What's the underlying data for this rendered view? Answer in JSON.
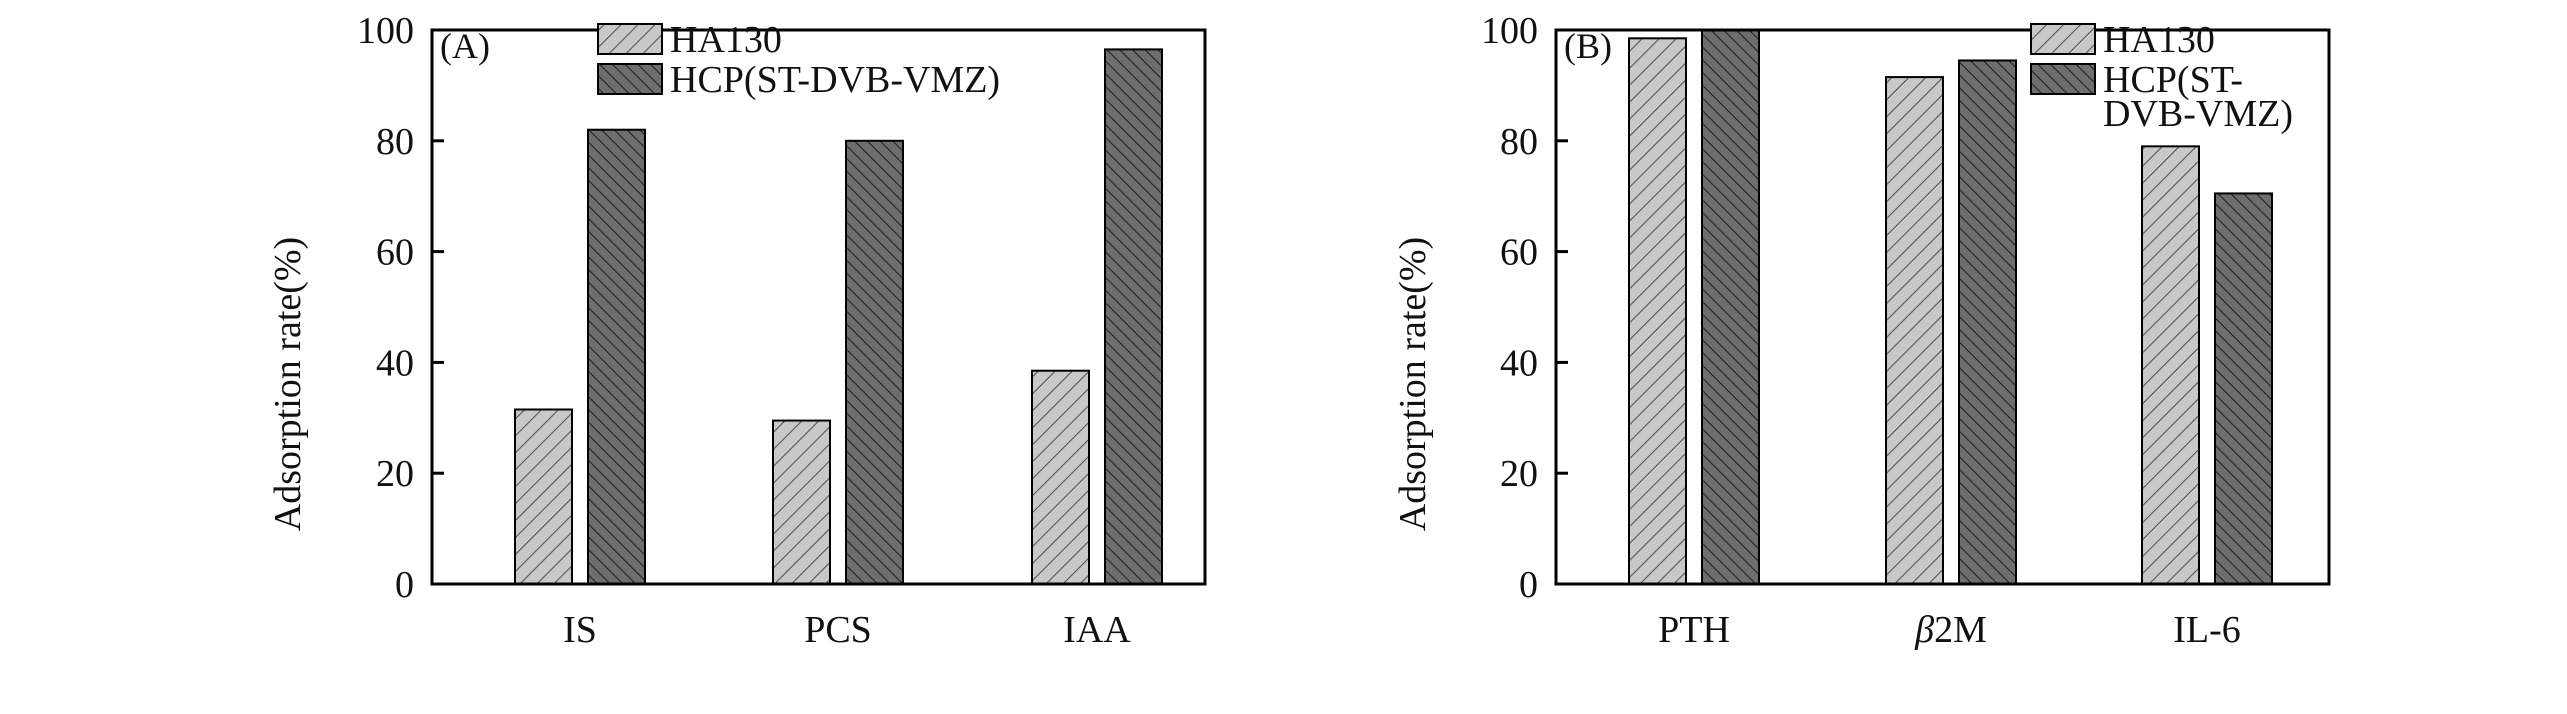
{
  "chart_data": [
    {
      "type": "bar",
      "panel_label": "(A)",
      "title": "",
      "xlabel": "",
      "ylabel": "Adsorption rate(%)",
      "categories": [
        "IS",
        "PCS",
        "IAA"
      ],
      "ylim": [
        0,
        100
      ],
      "yticks": [
        0,
        20,
        40,
        60,
        80,
        100
      ],
      "grid": false,
      "legend_position": "top-right",
      "series": [
        {
          "name": "HA130",
          "values": [
            31.5,
            29.5,
            38.5
          ]
        },
        {
          "name": "HCP(ST-DVB-VMZ)",
          "values": [
            82,
            80,
            96.5
          ]
        }
      ]
    },
    {
      "type": "bar",
      "panel_label": "(B)",
      "title": "",
      "xlabel": "",
      "ylabel": "Adsorption rate(%)",
      "categories": [
        "PTH",
        "β2M",
        "IL-6"
      ],
      "ylim": [
        0,
        100
      ],
      "yticks": [
        0,
        20,
        40,
        60,
        80,
        100
      ],
      "grid": false,
      "legend_position": "top-right",
      "series": [
        {
          "name": "HA130",
          "values": [
            98.5,
            91.5,
            79
          ]
        },
        {
          "name": "HCP(ST-DVB-VMZ)",
          "values": [
            100,
            94.5,
            70.5
          ]
        }
      ]
    }
  ],
  "colors": {
    "series_light": "#c8c8c8",
    "series_dark": "#6e6e6e",
    "hatch_light": "#555555",
    "hatch_dark": "#222222",
    "axis": "#000000"
  }
}
